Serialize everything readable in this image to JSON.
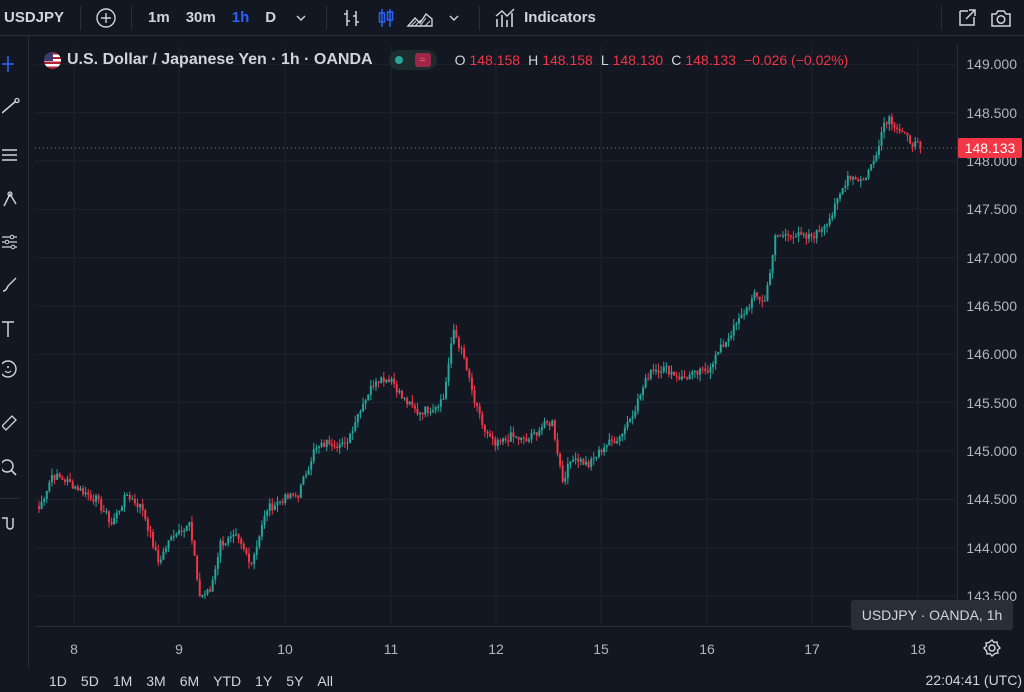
{
  "toolbar": {
    "symbol": "USDJPY",
    "timeframes": [
      "1m",
      "30m",
      "1h",
      "D"
    ],
    "active_timeframe": "1h",
    "indicators_label": "Indicators"
  },
  "legend": {
    "title": "U.S. Dollar / Japanese Yen · 1h · OANDA",
    "open_label": "O",
    "open": "148.158",
    "high_label": "H",
    "high": "148.158",
    "low_label": "L",
    "low": "148.130",
    "close_label": "C",
    "close": "148.133",
    "change": "−0.026 (−0.02%)"
  },
  "price_axis": {
    "ticks": [
      "149.000",
      "148.500",
      "148.000",
      "147.500",
      "147.000",
      "146.500",
      "146.000",
      "145.500",
      "145.000",
      "144.500",
      "144.000",
      "143.500"
    ],
    "last_price": "148.133"
  },
  "time_axis": {
    "labels": [
      "8",
      "9",
      "10",
      "11",
      "12",
      "15",
      "16",
      "17",
      "18"
    ]
  },
  "tooltip": "USDJPY · OANDA, 1h",
  "bottom": {
    "ranges": [
      "1D",
      "5D",
      "1M",
      "3M",
      "6M",
      "YTD",
      "1Y",
      "5Y",
      "All"
    ],
    "clock": "22:04:41 (UTC)"
  },
  "colors": {
    "up": "#26a69a",
    "down": "#f23645",
    "accent": "#2962ff"
  },
  "chart_data": {
    "type": "candlestick",
    "ylim": [
      143.2,
      149.2
    ],
    "x_labels": [
      "8",
      "9",
      "10",
      "11",
      "12",
      "15",
      "16",
      "17",
      "18"
    ],
    "anchors": [
      [
        0,
        144.4
      ],
      [
        5,
        144.75
      ],
      [
        10,
        144.7
      ],
      [
        16,
        144.6
      ],
      [
        22,
        144.5
      ],
      [
        28,
        144.25
      ],
      [
        34,
        144.55
      ],
      [
        40,
        144.4
      ],
      [
        46,
        143.85
      ],
      [
        52,
        144.15
      ],
      [
        58,
        144.25
      ],
      [
        62,
        143.5
      ],
      [
        66,
        143.55
      ],
      [
        70,
        144.05
      ],
      [
        76,
        144.1
      ],
      [
        82,
        143.85
      ],
      [
        88,
        144.4
      ],
      [
        94,
        144.5
      ],
      [
        100,
        144.55
      ],
      [
        106,
        145.0
      ],
      [
        112,
        145.1
      ],
      [
        118,
        145.05
      ],
      [
        124,
        145.45
      ],
      [
        130,
        145.75
      ],
      [
        136,
        145.75
      ],
      [
        140,
        145.55
      ],
      [
        146,
        145.4
      ],
      [
        152,
        145.45
      ],
      [
        156,
        145.55
      ],
      [
        160,
        146.25
      ],
      [
        164,
        145.95
      ],
      [
        168,
        145.5
      ],
      [
        172,
        145.2
      ],
      [
        176,
        145.05
      ],
      [
        182,
        145.15
      ],
      [
        188,
        145.1
      ],
      [
        194,
        145.25
      ],
      [
        198,
        145.3
      ],
      [
        202,
        144.7
      ],
      [
        206,
        144.95
      ],
      [
        212,
        144.85
      ],
      [
        218,
        145.05
      ],
      [
        224,
        145.15
      ],
      [
        230,
        145.45
      ],
      [
        236,
        145.85
      ],
      [
        242,
        145.85
      ],
      [
        248,
        145.75
      ],
      [
        254,
        145.8
      ],
      [
        258,
        145.85
      ],
      [
        264,
        146.1
      ],
      [
        270,
        146.35
      ],
      [
        276,
        146.6
      ],
      [
        280,
        146.55
      ],
      [
        284,
        147.2
      ],
      [
        290,
        147.25
      ],
      [
        296,
        147.2
      ],
      [
        300,
        147.25
      ],
      [
        306,
        147.45
      ],
      [
        312,
        147.85
      ],
      [
        318,
        147.8
      ],
      [
        322,
        148.0
      ],
      [
        326,
        148.4
      ],
      [
        328,
        148.45
      ],
      [
        334,
        148.25
      ],
      [
        340,
        148.133
      ]
    ],
    "total_bars": 341
  }
}
